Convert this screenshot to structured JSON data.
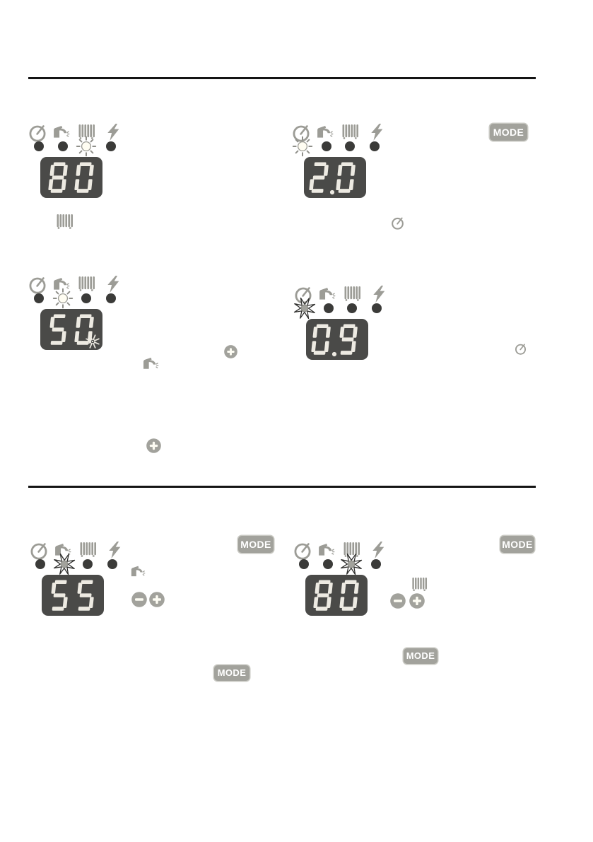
{
  "labels": {
    "mode": "MODE"
  },
  "status_icon_row": [
    {
      "name": "timer",
      "desc": "timer gauge icon"
    },
    {
      "name": "tap",
      "desc": "hot water tap icon"
    },
    {
      "name": "radiator",
      "desc": "central heating radiator icon"
    },
    {
      "name": "bolt",
      "desc": "power lightning bolt icon"
    }
  ],
  "panels": [
    {
      "display_value": "80",
      "display_star": false,
      "leds": [
        "off",
        "off",
        "flash_sun",
        "off"
      ],
      "aside_icons": [
        "radiator"
      ],
      "aside_buttons": [],
      "mode_button": false
    },
    {
      "display_value": "2.0",
      "display_star": false,
      "leds": [
        "flash_sun",
        "off",
        "off",
        "off"
      ],
      "aside_icons": [
        "timer"
      ],
      "aside_buttons": [],
      "mode_button": true
    },
    {
      "display_value": "50",
      "display_star": true,
      "leds": [
        "off",
        "flash_sun",
        "off",
        "off"
      ],
      "aside_icons": [
        "tap"
      ],
      "aside_buttons": [
        "plus"
      ],
      "mode_button": false
    },
    {
      "display_value": "0.9",
      "display_star": false,
      "leds": [
        "flash_star",
        "off",
        "off",
        "off"
      ],
      "aside_icons": [
        "timer"
      ],
      "aside_buttons": [],
      "mode_button": false
    },
    {
      "display_value": "55",
      "display_star": false,
      "leds": [
        "off",
        "flash_star",
        "off",
        "off"
      ],
      "aside_icons": [
        "tap"
      ],
      "aside_buttons": [
        "minus",
        "plus"
      ],
      "mode_button": true
    },
    {
      "display_value": "80",
      "display_star": false,
      "leds": [
        "off",
        "off",
        "flash_star",
        "off"
      ],
      "aside_icons": [
        "radiator"
      ],
      "aside_buttons": [
        "minus",
        "plus"
      ],
      "mode_button": true
    }
  ],
  "standalone_buttons": [
    "plus",
    "mode",
    "mode"
  ],
  "colors": {
    "icon_gray": "#9c9c96",
    "ray_gray": "#8f8f89",
    "led_dark": "#3b3b39",
    "led_lit": "#fffdf2",
    "display_background": "#4a4a48",
    "digit": "#edeae2",
    "button_gray": "#a2a29c",
    "button_symbol": "#fdfcf3",
    "star_outline": "#2e2e2c",
    "rule": "#141414"
  }
}
